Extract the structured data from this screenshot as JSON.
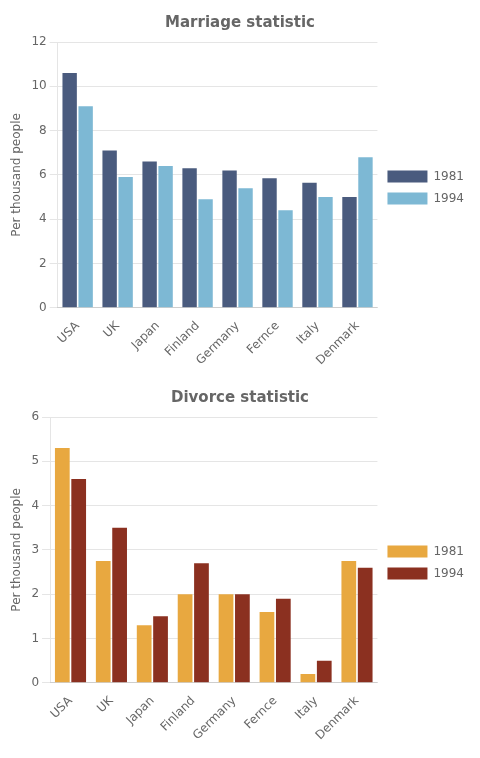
{
  "chart_data": [
    {
      "type": "bar",
      "title": "Marriage statistic",
      "categories": [
        "USA",
        "UK",
        "Japan",
        "Finland",
        "Germany",
        "Fernce",
        "Italy",
        "Denmark"
      ],
      "series": [
        {
          "name": "1981",
          "color": "#4a5b7e",
          "values": [
            10.6,
            7.1,
            6.6,
            6.3,
            6.2,
            5.85,
            5.65,
            5.0
          ]
        },
        {
          "name": "1994",
          "color": "#7db8d4",
          "values": [
            9.1,
            5.9,
            6.4,
            4.9,
            5.4,
            4.4,
            5.0,
            6.8
          ]
        }
      ],
      "ylabel": "Per thousand people",
      "ylim": [
        0,
        12
      ],
      "yticks": [
        0,
        2,
        4,
        6,
        8,
        10,
        12
      ],
      "grid": true,
      "legend": "right"
    },
    {
      "type": "bar",
      "title": "Divorce statistic",
      "categories": [
        "USA",
        "UK",
        "Japan",
        "Finland",
        "Germany",
        "Fernce",
        "Italy",
        "Denmark"
      ],
      "series": [
        {
          "name": "1981",
          "color": "#e8a840",
          "values": [
            5.3,
            2.75,
            1.3,
            2.0,
            2.0,
            1.6,
            0.2,
            2.75
          ]
        },
        {
          "name": "1994",
          "color": "#8b3020",
          "values": [
            4.6,
            3.5,
            1.5,
            2.7,
            2.0,
            1.9,
            0.5,
            2.6
          ]
        }
      ],
      "ylabel": "Per thousand people",
      "ylim": [
        0,
        6
      ],
      "yticks": [
        0,
        1,
        2,
        3,
        4,
        5,
        6
      ],
      "grid": true,
      "legend": "right"
    }
  ]
}
